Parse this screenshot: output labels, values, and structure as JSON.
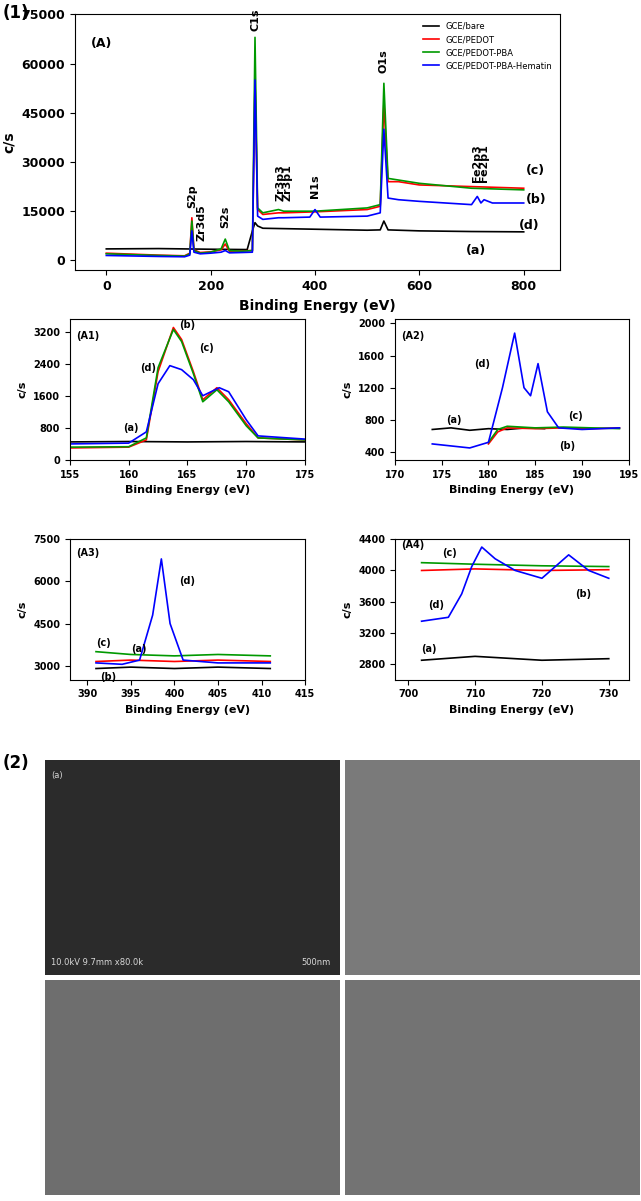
{
  "figure_labels": [
    "(1)",
    "(2)"
  ],
  "chart_data": [
    {
      "type": "line",
      "xlabel": "Binding Energy (eV)",
      "ylabel": "c/s",
      "xlim": [
        -60,
        870
      ],
      "ylim": [
        -3000,
        75000
      ],
      "xticks": [
        0,
        200,
        400,
        600,
        800
      ],
      "yticks": [
        0,
        15000,
        30000,
        45000,
        60000,
        75000
      ],
      "legend": "upper right",
      "series": [
        {
          "name": "GCE/bare",
          "color": "#000000",
          "x": [
            0,
            100,
            200,
            270,
            280,
            285,
            290,
            300,
            400,
            500,
            525,
            532,
            540,
            600,
            700,
            800
          ],
          "values": [
            3500,
            3600,
            3400,
            3300,
            9000,
            11500,
            10500,
            9800,
            9500,
            9200,
            9300,
            12000,
            9300,
            9000,
            8800,
            8700
          ]
        },
        {
          "name": "GCE/PEDOT",
          "color": "#ff0000",
          "x": [
            0,
            100,
            150,
            160,
            164,
            168,
            180,
            200,
            220,
            228,
            236,
            260,
            280,
            285,
            290,
            300,
            330,
            340,
            400,
            500,
            525,
            532,
            540,
            560,
            600,
            700,
            800
          ],
          "values": [
            2200,
            1600,
            1400,
            2200,
            13000,
            3200,
            2400,
            2600,
            3200,
            5000,
            2800,
            2900,
            3000,
            55000,
            15500,
            14000,
            14500,
            14500,
            14800,
            15500,
            16500,
            48000,
            24000,
            24000,
            23000,
            22500,
            22000
          ]
        },
        {
          "name": "GCE/PEDOT-PBA",
          "color": "#009900",
          "x": [
            0,
            100,
            150,
            160,
            164,
            168,
            180,
            200,
            220,
            228,
            236,
            260,
            280,
            285,
            290,
            300,
            330,
            340,
            400,
            500,
            525,
            532,
            540,
            560,
            600,
            700,
            800
          ],
          "values": [
            2000,
            1500,
            1300,
            2000,
            12000,
            3000,
            2200,
            2500,
            3500,
            6500,
            3000,
            2800,
            3000,
            68000,
            16000,
            14500,
            15500,
            15000,
            15000,
            16000,
            17000,
            54000,
            25000,
            24500,
            23500,
            22000,
            21500
          ]
        },
        {
          "name": "GCE/PEDOT-PBA-Hematin",
          "color": "#0000ff",
          "x": [
            0,
            100,
            150,
            160,
            164,
            168,
            180,
            200,
            220,
            228,
            236,
            260,
            280,
            285,
            290,
            300,
            330,
            340,
            390,
            400,
            410,
            500,
            525,
            532,
            540,
            560,
            600,
            700,
            711,
            718,
            724,
            740,
            800
          ],
          "values": [
            1500,
            1200,
            1100,
            1600,
            9000,
            2500,
            2000,
            2200,
            2500,
            3000,
            2300,
            2400,
            2500,
            55000,
            13500,
            12500,
            13000,
            13000,
            13200,
            15500,
            13200,
            13500,
            14500,
            40000,
            19000,
            18500,
            18000,
            17000,
            19500,
            17500,
            18500,
            17500,
            17500
          ]
        }
      ],
      "annotations": [
        {
          "text": "(A)",
          "x": -30,
          "y": 66000
        },
        {
          "text": "S2p",
          "x": 164,
          "y": 16000
        },
        {
          "text": "Zr3d5",
          "x": 182,
          "y": 6000
        },
        {
          "text": "S2s",
          "x": 228,
          "y": 10000
        },
        {
          "text": "C1s",
          "x": 285,
          "y": 70000
        },
        {
          "text": "Zr3p3",
          "x": 333,
          "y": 18000
        },
        {
          "text": "Zr3p1",
          "x": 347,
          "y": 18000
        },
        {
          "text": "N1s",
          "x": 400,
          "y": 19000
        },
        {
          "text": "O1s",
          "x": 532,
          "y": 57000
        },
        {
          "text": "Fe2p3",
          "x": 711,
          "y": 24000
        },
        {
          "text": "Fe2p1",
          "x": 724,
          "y": 24000
        },
        {
          "text": "(a)",
          "x": 690,
          "y": 3000
        },
        {
          "text": "(b)",
          "x": 805,
          "y": 18500
        },
        {
          "text": "(c)",
          "x": 805,
          "y": 27500
        },
        {
          "text": "(d)",
          "x": 790,
          "y": 10500
        }
      ]
    },
    {
      "type": "line",
      "xlabel": "Binding Energy (eV)",
      "ylabel": "c/s",
      "xlim": [
        155,
        175
      ],
      "ylim": [
        0,
        3500
      ],
      "xticks": [
        155,
        160,
        165,
        170,
        175
      ],
      "yticks": [
        0,
        800,
        1600,
        2400,
        3200
      ],
      "series": [
        {
          "color": "#000000",
          "x": [
            155,
            160,
            165,
            170,
            175
          ],
          "values": [
            450,
            460,
            450,
            460,
            450
          ]
        },
        {
          "color": "#ff0000",
          "x": [
            155,
            160,
            161.5,
            162.5,
            163.8,
            164.5,
            165.5,
            166.3,
            167.5,
            168.5,
            170,
            171,
            175
          ],
          "values": [
            300,
            320,
            500,
            2200,
            3300,
            3000,
            2200,
            1500,
            1800,
            1500,
            900,
            550,
            500
          ]
        },
        {
          "color": "#009900",
          "x": [
            155,
            160,
            161.5,
            162.5,
            163.8,
            164.5,
            165.5,
            166.3,
            167.5,
            168.5,
            170,
            171,
            175
          ],
          "values": [
            320,
            330,
            550,
            2300,
            3250,
            2950,
            2150,
            1450,
            1750,
            1450,
            850,
            550,
            500
          ]
        },
        {
          "color": "#0000ff",
          "x": [
            155,
            160,
            161.5,
            162.5,
            163.5,
            164.5,
            165.5,
            166.3,
            167.7,
            168.5,
            170,
            171,
            175
          ],
          "values": [
            400,
            420,
            700,
            1900,
            2350,
            2250,
            2000,
            1600,
            1800,
            1700,
            1000,
            600,
            520
          ]
        }
      ],
      "annotations": [
        {
          "text": "(A1)",
          "x": 155.5,
          "y": 3100
        },
        {
          "text": "(b)",
          "x": 164.3,
          "y": 3350
        },
        {
          "text": "(c)",
          "x": 166.0,
          "y": 2800
        },
        {
          "text": "(d)",
          "x": 161.0,
          "y": 2300
        },
        {
          "text": "(a)",
          "x": 159.5,
          "y": 800
        }
      ]
    },
    {
      "type": "line",
      "xlabel": "Binding Energy (eV)",
      "ylabel": "c/s",
      "xlim": [
        170,
        195
      ],
      "ylim": [
        300,
        2050
      ],
      "xticks": [
        170,
        175,
        180,
        185,
        190,
        195
      ],
      "yticks": [
        400,
        800,
        1200,
        1600,
        2000
      ],
      "series": [
        {
          "color": "#000000",
          "x": [
            174,
            176,
            178,
            180,
            182,
            184,
            186
          ],
          "values": [
            680,
            700,
            670,
            690,
            680,
            700,
            690
          ]
        },
        {
          "color": "#ff0000",
          "x": [
            180,
            181,
            182,
            185,
            188,
            191,
            194
          ],
          "values": [
            500,
            650,
            700,
            690,
            700,
            690,
            700
          ]
        },
        {
          "color": "#009900",
          "x": [
            180,
            181,
            182,
            185,
            188,
            191,
            194
          ],
          "values": [
            520,
            680,
            720,
            700,
            710,
            700,
            690
          ]
        },
        {
          "color": "#0000ff",
          "x": [
            174,
            178,
            180,
            181.5,
            182.8,
            183.8,
            184.5,
            185.3,
            186.3,
            187.5,
            190,
            194
          ],
          "values": [
            500,
            450,
            520,
            1200,
            1880,
            1200,
            1100,
            1500,
            900,
            700,
            680,
            700
          ]
        }
      ],
      "annotations": [
        {
          "text": "(A2)",
          "x": 170.7,
          "y": 1850
        },
        {
          "text": "(d)",
          "x": 178.5,
          "y": 1500
        },
        {
          "text": "(a)",
          "x": 175.5,
          "y": 800
        },
        {
          "text": "(c)",
          "x": 188.5,
          "y": 850
        },
        {
          "text": "(b)",
          "x": 187.5,
          "y": 480
        }
      ]
    },
    {
      "type": "line",
      "xlabel": "Binding Energy (eV)",
      "ylabel": "c/s",
      "xlim": [
        388,
        415
      ],
      "ylim": [
        2500,
        7500
      ],
      "xticks": [
        390,
        395,
        400,
        405,
        410,
        415
      ],
      "yticks": [
        3000,
        4500,
        6000,
        7500
      ],
      "series": [
        {
          "color": "#000000",
          "x": [
            391,
            395,
            400,
            405,
            411
          ],
          "values": [
            2900,
            2950,
            2900,
            2950,
            2900
          ]
        },
        {
          "color": "#ff0000",
          "x": [
            391,
            395,
            400,
            405,
            411
          ],
          "values": [
            3150,
            3200,
            3150,
            3200,
            3150
          ]
        },
        {
          "color": "#009900",
          "x": [
            391,
            395,
            400,
            405,
            411
          ],
          "values": [
            3500,
            3400,
            3350,
            3400,
            3350
          ]
        },
        {
          "color": "#0000ff",
          "x": [
            391,
            394,
            396,
            397.5,
            398.5,
            399.5,
            401,
            405,
            411
          ],
          "values": [
            3100,
            3050,
            3200,
            4800,
            6800,
            4500,
            3200,
            3100,
            3100
          ]
        }
      ],
      "annotations": [
        {
          "text": "(A3)",
          "x": 388.7,
          "y": 7000
        },
        {
          "text": "(c)",
          "x": 391,
          "y": 3800
        },
        {
          "text": "(a)",
          "x": 395,
          "y": 3600
        },
        {
          "text": "(b)",
          "x": 391.5,
          "y": 2600
        },
        {
          "text": "(d)",
          "x": 400.5,
          "y": 6000
        }
      ]
    },
    {
      "type": "line",
      "xlabel": "Binding Energy (eV)",
      "ylabel": "c/s",
      "xlim": [
        698,
        733
      ],
      "ylim": [
        2600,
        4400
      ],
      "xticks": [
        700,
        710,
        720,
        730
      ],
      "yticks": [
        2800,
        3200,
        3600,
        4000,
        4400
      ],
      "series": [
        {
          "color": "#000000",
          "x": [
            702,
            710,
            720,
            730
          ],
          "values": [
            2850,
            2900,
            2850,
            2870
          ]
        },
        {
          "color": "#ff0000",
          "x": [
            702,
            710,
            720,
            730
          ],
          "values": [
            4000,
            4020,
            4000,
            4010
          ]
        },
        {
          "color": "#009900",
          "x": [
            702,
            710,
            720,
            730
          ],
          "values": [
            4100,
            4080,
            4060,
            4050
          ]
        },
        {
          "color": "#0000ff",
          "x": [
            702,
            706,
            708,
            709.5,
            711,
            713,
            716,
            720,
            724,
            727,
            730
          ],
          "values": [
            3350,
            3400,
            3700,
            4050,
            4300,
            4150,
            4000,
            3900,
            4200,
            4000,
            3900
          ]
        }
      ],
      "annotations": [
        {
          "text": "(A4)",
          "x": 699,
          "y": 4330
        },
        {
          "text": "(c)",
          "x": 705,
          "y": 4230
        },
        {
          "text": "(d)",
          "x": 703,
          "y": 3560
        },
        {
          "text": "(b)",
          "x": 725,
          "y": 3700
        },
        {
          "text": "(a)",
          "x": 702,
          "y": 3000
        }
      ]
    }
  ],
  "images": [
    {
      "texts": [
        "(a)",
        "10.0kV 9.7mm x80.0k",
        "500nm"
      ]
    },
    {
      "texts": []
    },
    {
      "texts": []
    },
    {
      "texts": []
    }
  ]
}
